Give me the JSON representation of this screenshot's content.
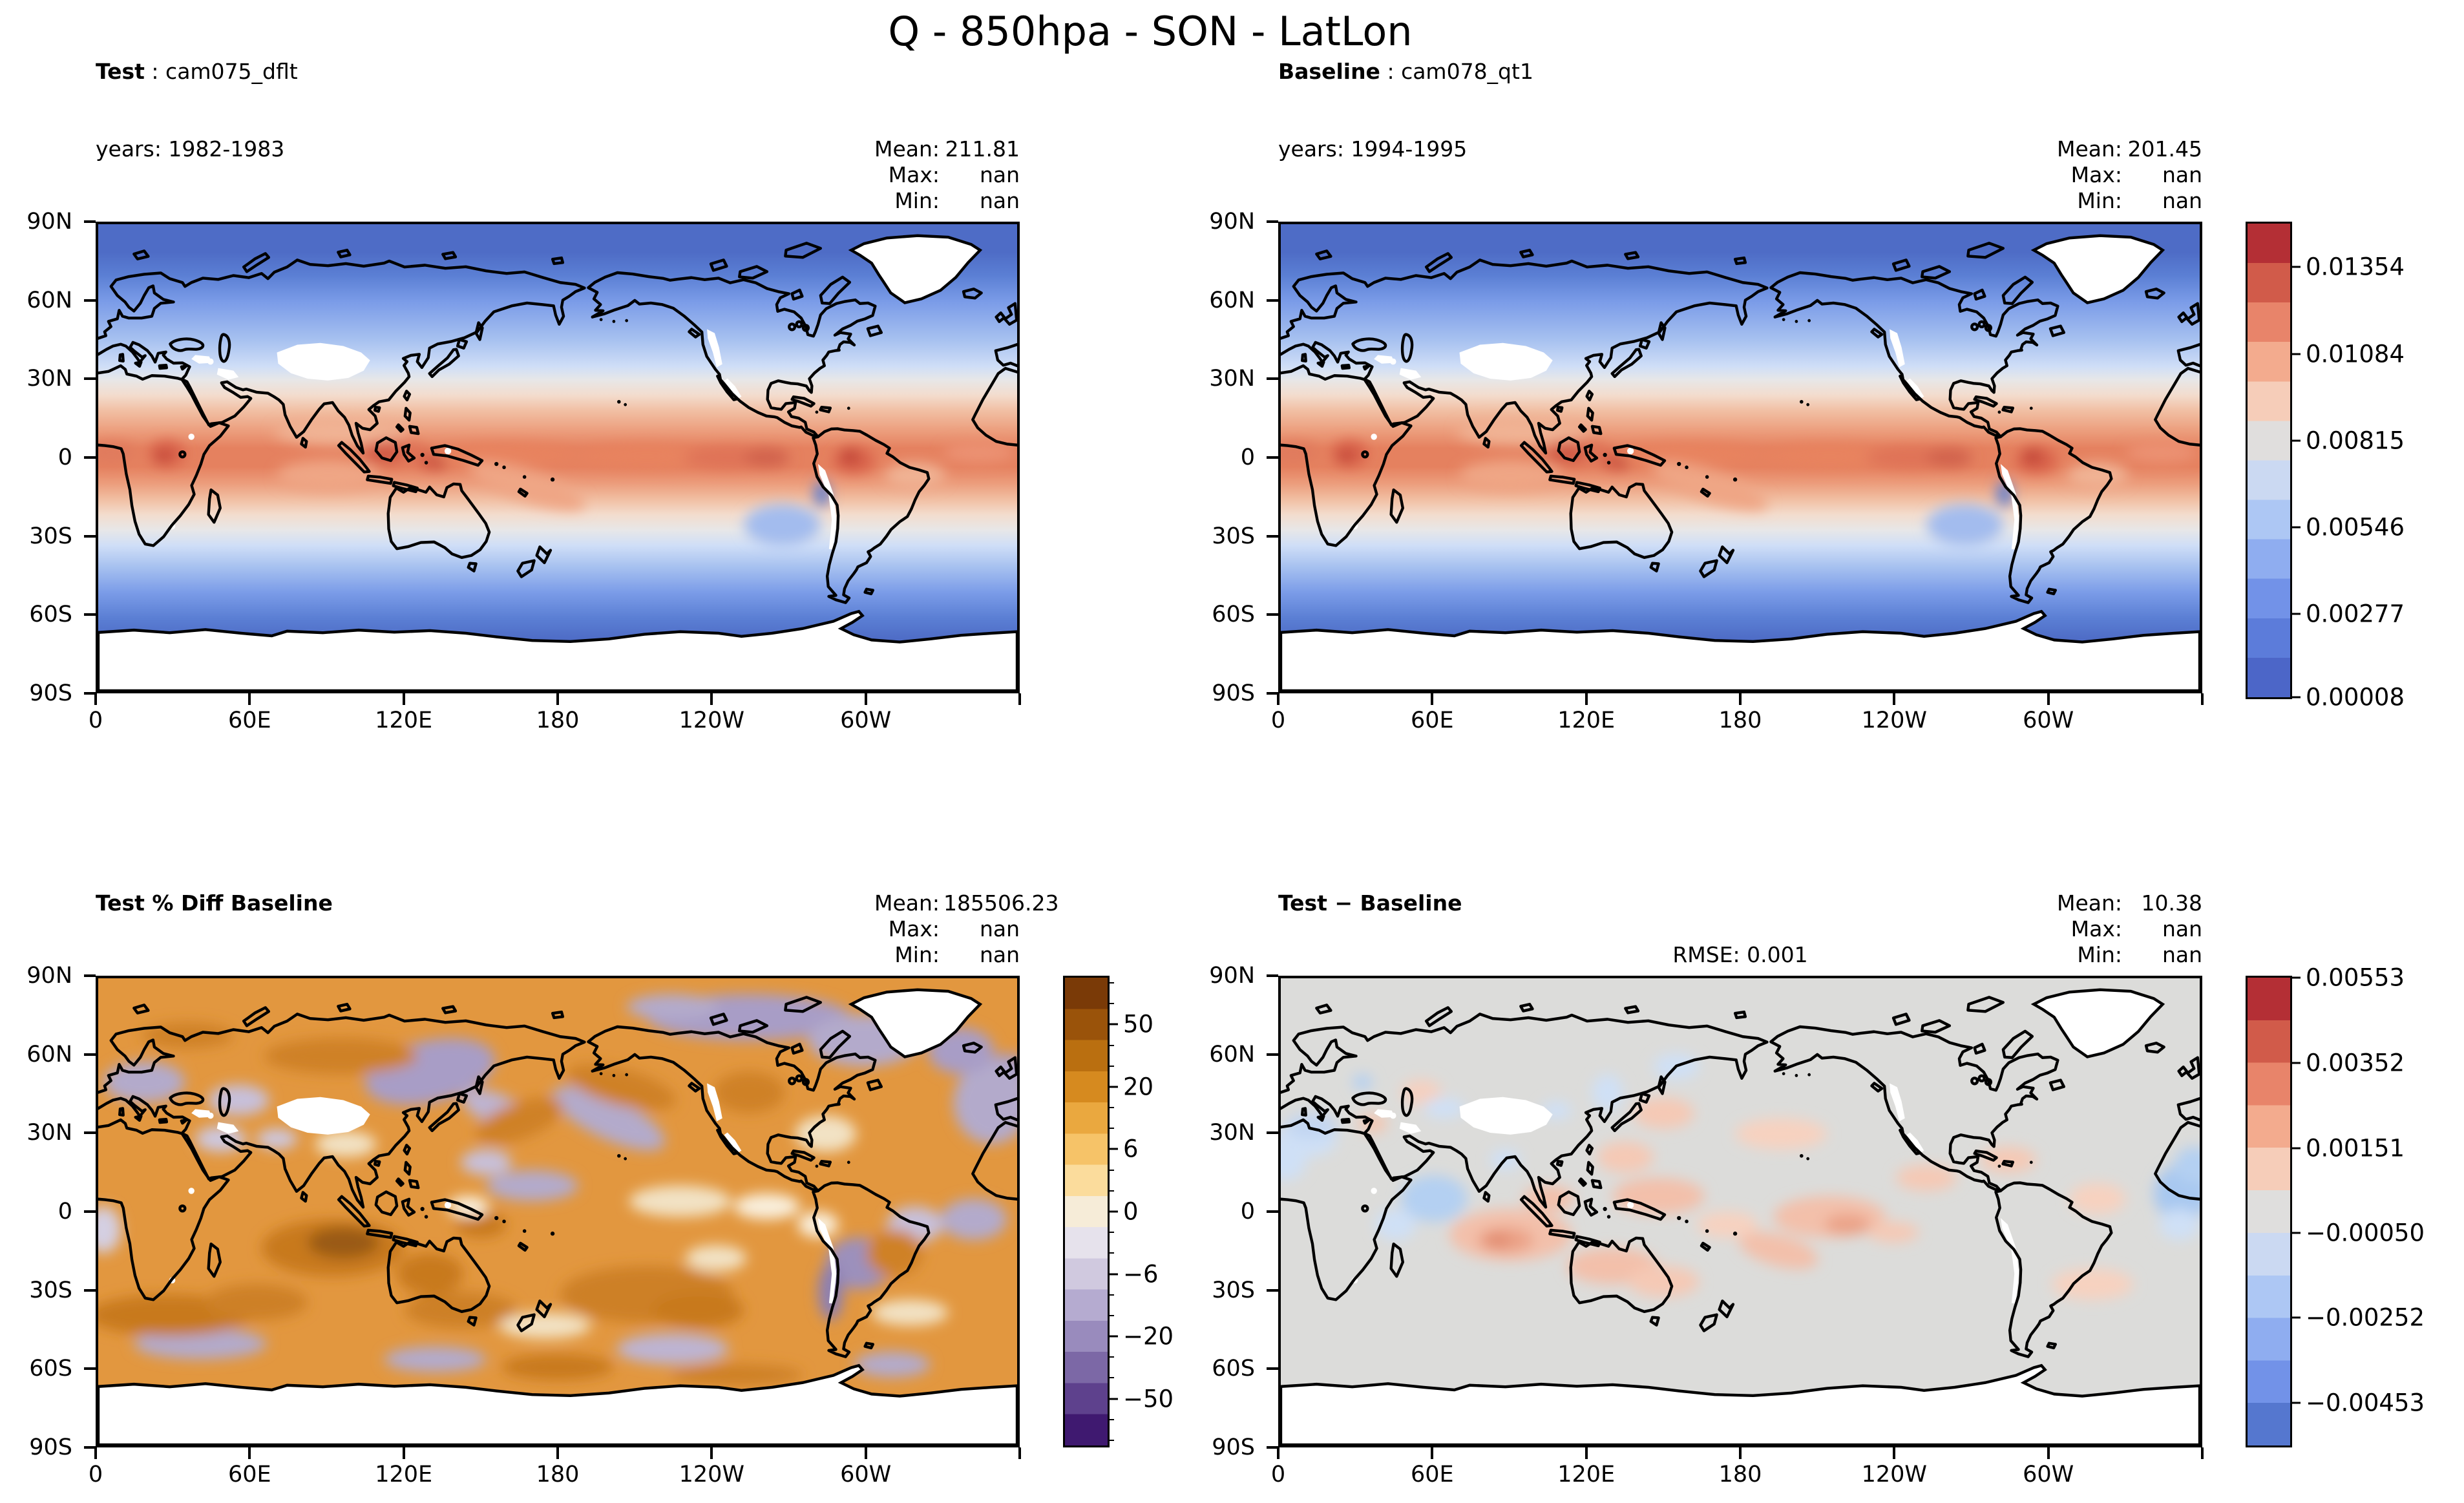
{
  "title": "Q - 850hpa - SON - LatLon",
  "panels": [
    {
      "kind": "test",
      "label": "Test",
      "sep": " : ",
      "run": "cam075_dflt",
      "years": "years: 1982-1983",
      "stats": [
        {
          "label": "Mean:",
          "value": "211.81"
        },
        {
          "label": "Max:",
          "value": "nan"
        },
        {
          "label": "Min:",
          "value": "nan"
        }
      ]
    },
    {
      "kind": "baseline",
      "label": "Baseline",
      "sep": " : ",
      "run": "cam078_qt1",
      "years": "years: 1994-1995",
      "stats": [
        {
          "label": "Mean:",
          "value": "201.45"
        },
        {
          "label": "Max:",
          "value": "nan"
        },
        {
          "label": "Min:",
          "value": "nan"
        }
      ]
    },
    {
      "kind": "pct-diff",
      "label": "Test % Diff Baseline",
      "stats": [
        {
          "label": "Mean:",
          "value": "185506.23"
        },
        {
          "label": "Max:",
          "value": "nan"
        },
        {
          "label": "Min:",
          "value": "nan"
        }
      ]
    },
    {
      "kind": "diff",
      "label": "Test − Baseline",
      "rmse": "RMSE: 0.001",
      "stats": [
        {
          "label": "Mean:",
          "value": "10.38"
        },
        {
          "label": "Max:",
          "value": "nan"
        },
        {
          "label": "Min:",
          "value": "nan"
        }
      ]
    }
  ],
  "axes": {
    "lat": [
      "90N",
      "60N",
      "30N",
      "0",
      "30S",
      "60S",
      "90S"
    ],
    "lon": [
      "0",
      "60E",
      "120E",
      "180",
      "120W",
      "60W"
    ]
  },
  "colorbars": {
    "main": {
      "labels": [
        "0.01354",
        "0.01084",
        "0.00815",
        "0.00546",
        "0.00277",
        "0.00008"
      ]
    },
    "pct": {
      "labels": [
        "50",
        "20",
        "6",
        "0",
        "−6",
        "−20",
        "−50"
      ]
    },
    "diff": {
      "labels": [
        "0.00553",
        "0.00352",
        "0.00151",
        "−0.00050",
        "−0.00252",
        "−0.00453"
      ]
    }
  },
  "chart_data": [
    {
      "panel": "top-left",
      "type": "heatmap",
      "title": "Test: cam075_dflt",
      "years": "1982-1983",
      "variable": "Q",
      "level": "850hpa",
      "season": "SON",
      "projection": "LatLon",
      "colormap": "coolwarm/RdBu-like, discrete bands",
      "colorbar_ticks": [
        0.01354,
        0.01084,
        0.00815,
        0.00546,
        0.00277,
        8e-05
      ],
      "stats": {
        "mean": 211.81,
        "max": "nan",
        "min": "nan"
      },
      "x_ticks": [
        "0",
        "60E",
        "120E",
        "180",
        "120W",
        "60W"
      ],
      "y_ticks": [
        "90N",
        "60N",
        "30N",
        "0",
        "30S",
        "60S",
        "90S"
      ],
      "pattern": "Specific humidity: maximum (~0.012-0.0135) in equatorial band over Africa, Indonesia and South America, decreasing poleward to ~0.0001; white no-data over Antarctica interior, Greenland, Tibetan Plateau, Rockies, Andes"
    },
    {
      "panel": "top-right",
      "type": "heatmap",
      "title": "Baseline: cam078_qt1",
      "years": "1994-1995",
      "variable": "Q",
      "level": "850hpa",
      "season": "SON",
      "projection": "LatLon",
      "colormap": "coolwarm/RdBu-like, discrete bands",
      "colorbar_ticks": [
        0.01354,
        0.01084,
        0.00815,
        0.00546,
        0.00277,
        8e-05
      ],
      "stats": {
        "mean": 201.45,
        "max": "nan",
        "min": "nan"
      },
      "x_ticks": [
        "0",
        "60E",
        "120E",
        "180",
        "120W",
        "60W"
      ],
      "y_ticks": [
        "90N",
        "60N",
        "30N",
        "0",
        "30S",
        "60S",
        "90S"
      ],
      "pattern": "Nearly identical spatial structure to Test panel: moist tropics, dry poles"
    },
    {
      "panel": "bottom-left",
      "type": "heatmap",
      "title": "Test % Diff Baseline",
      "colormap": "PuOr reversed (orange = positive, purple = negative), nonlinear levels",
      "colorbar_ticks": [
        50,
        20,
        6,
        0,
        -6,
        -20,
        -50
      ],
      "stats": {
        "mean": 185506.23,
        "max": "nan",
        "min": "nan"
      },
      "x_ticks": [
        "0",
        "60E",
        "120E",
        "180",
        "120W",
        "60W"
      ],
      "y_ticks": [
        "90N",
        "60N",
        "30N",
        "0",
        "30S",
        "60S",
        "90S"
      ],
      "pattern": "Mostly positive (orange) percent differences, strongest over southern Indian Ocean, Australia and South Pacific; purple negative patches over NE Asia, Arctic Canada, North Atlantic, SE Pacific and Southern Ocean"
    },
    {
      "panel": "bottom-right",
      "type": "heatmap",
      "title": "Test − Baseline",
      "rmse": 0.001,
      "colormap": "coolwarm/RdBu-like, discrete bands",
      "colorbar_ticks": [
        0.00553,
        0.00352,
        0.00151,
        -0.0005,
        -0.00252,
        -0.00453
      ],
      "stats": {
        "mean": 10.38,
        "max": "nan",
        "min": "nan"
      },
      "x_ticks": [
        "0",
        "60E",
        "120E",
        "180",
        "120W",
        "60W"
      ],
      "y_ticks": [
        "90N",
        "60N",
        "30N",
        "0",
        "30S",
        "60S",
        "90S"
      ],
      "pattern": "Near-zero (gray) differences almost everywhere; weak positive (salmon) patches over tropical Indian Ocean, Australia and central Pacific; weak negative (light blue) over Arabian Sea, equatorial Atlantic and NW Pacific"
    }
  ]
}
